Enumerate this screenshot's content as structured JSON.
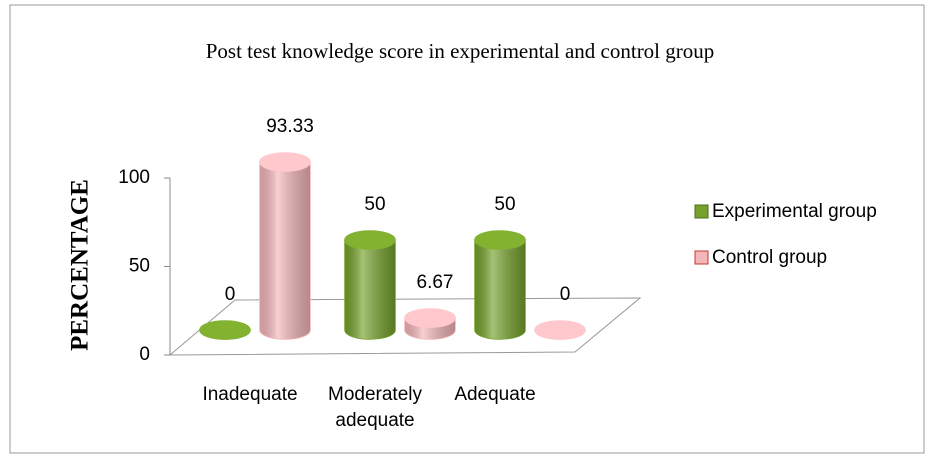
{
  "chart_data": {
    "type": "bar3d",
    "title": "Post  test knowledge score in experimental and control group",
    "y_label": "PERCENTAGE",
    "categories": [
      "Inadequate",
      "Moderately adequate",
      "Adequate"
    ],
    "series": [
      {
        "name": "Experimental group",
        "color": "#76a22c",
        "values": [
          0,
          50,
          50
        ]
      },
      {
        "name": "Control group",
        "color": "#f4b6ba",
        "values": [
          93.33,
          6.67,
          0
        ]
      }
    ],
    "ylim": [
      0,
      100
    ],
    "yticks": [
      0,
      50,
      100
    ],
    "legend": "right"
  }
}
